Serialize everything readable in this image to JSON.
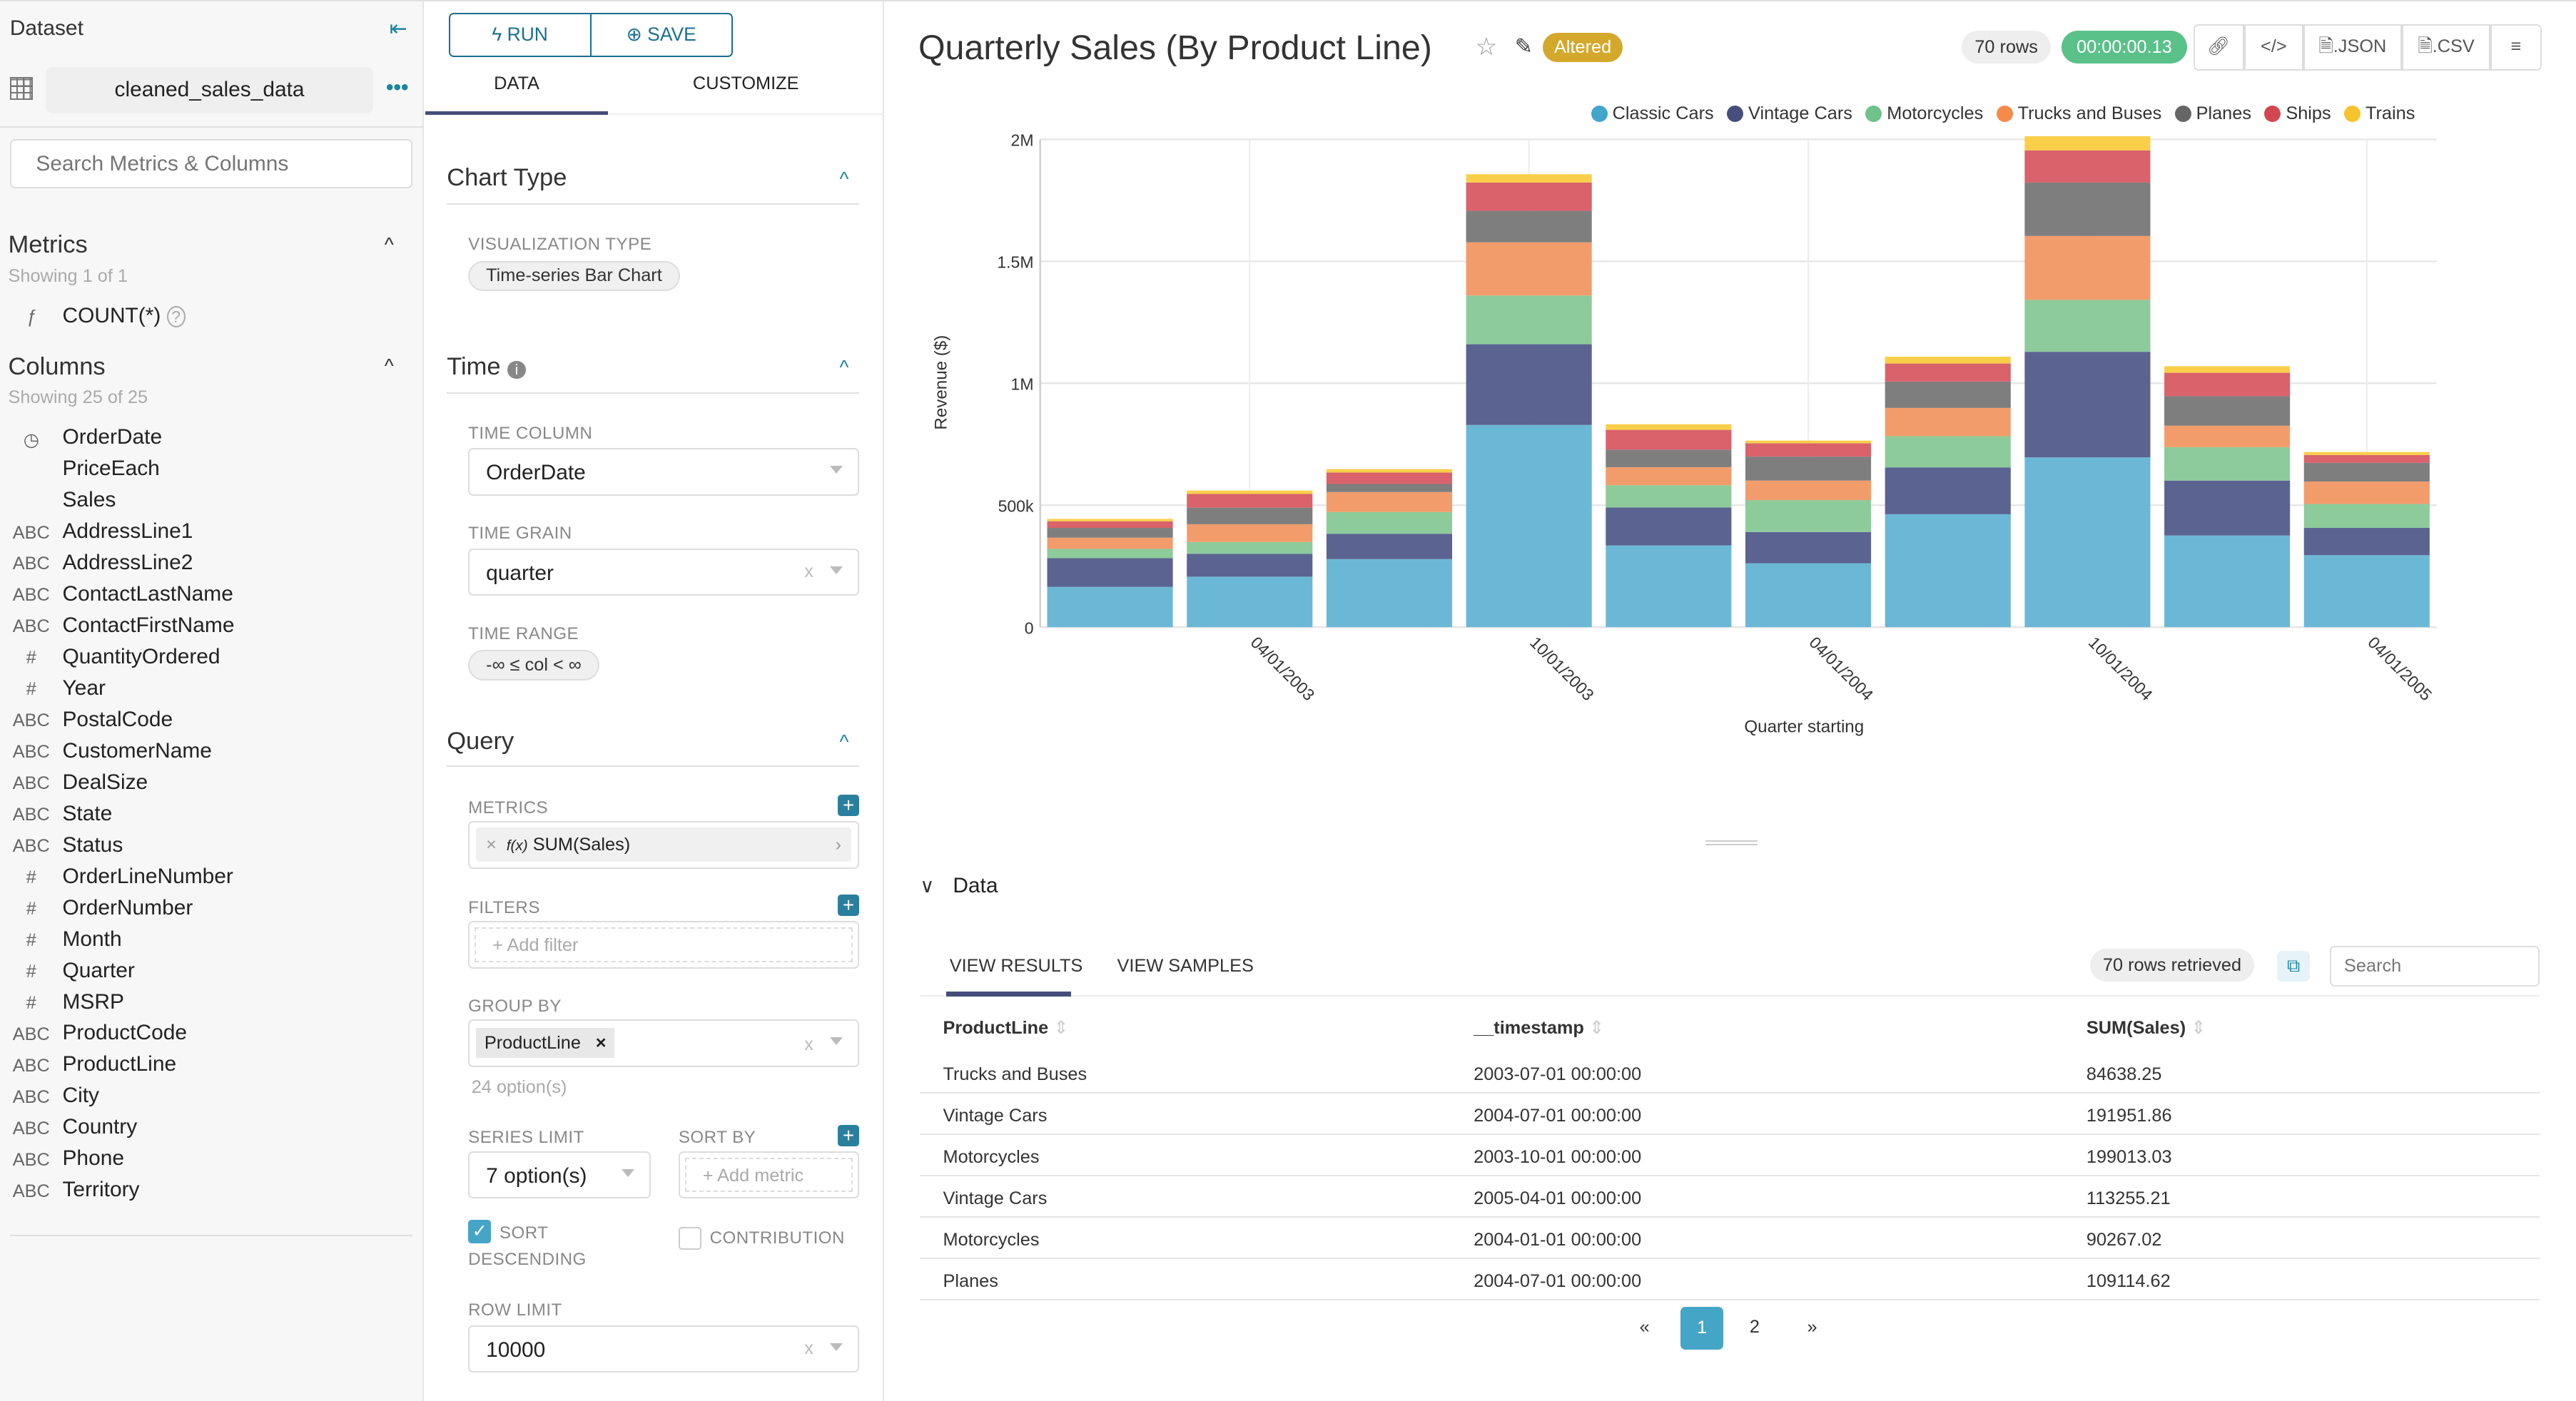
{
  "left": {
    "dataset_label": "Dataset",
    "dataset_name": "cleaned_sales_data",
    "search_placeholder": "Search Metrics & Columns",
    "metrics_title": "Metrics",
    "metrics_showing": "Showing 1 of 1",
    "metrics": [
      {
        "type": "ƒ",
        "name": "COUNT(*)"
      }
    ],
    "columns_title": "Columns",
    "columns_showing": "Showing 25 of 25",
    "columns": [
      {
        "type": "clock",
        "name": "OrderDate"
      },
      {
        "type": "",
        "name": "PriceEach"
      },
      {
        "type": "",
        "name": "Sales"
      },
      {
        "type": "ABC",
        "name": "AddressLine1"
      },
      {
        "type": "ABC",
        "name": "AddressLine2"
      },
      {
        "type": "ABC",
        "name": "ContactLastName"
      },
      {
        "type": "ABC",
        "name": "ContactFirstName"
      },
      {
        "type": "#",
        "name": "QuantityOrdered"
      },
      {
        "type": "#",
        "name": "Year"
      },
      {
        "type": "ABC",
        "name": "PostalCode"
      },
      {
        "type": "ABC",
        "name": "CustomerName"
      },
      {
        "type": "ABC",
        "name": "DealSize"
      },
      {
        "type": "ABC",
        "name": "State"
      },
      {
        "type": "ABC",
        "name": "Status"
      },
      {
        "type": "#",
        "name": "OrderLineNumber"
      },
      {
        "type": "#",
        "name": "OrderNumber"
      },
      {
        "type": "#",
        "name": "Month"
      },
      {
        "type": "#",
        "name": "Quarter"
      },
      {
        "type": "#",
        "name": "MSRP"
      },
      {
        "type": "ABC",
        "name": "ProductCode"
      },
      {
        "type": "ABC",
        "name": "ProductLine"
      },
      {
        "type": "ABC",
        "name": "City"
      },
      {
        "type": "ABC",
        "name": "Country"
      },
      {
        "type": "ABC",
        "name": "Phone"
      },
      {
        "type": "ABC",
        "name": "Territory"
      }
    ]
  },
  "mid": {
    "run_label": "RUN",
    "save_label": "SAVE",
    "tabs": [
      "DATA",
      "CUSTOMIZE"
    ],
    "active_tab": "DATA",
    "chart_type_title": "Chart Type",
    "viz_type_label": "VISUALIZATION TYPE",
    "viz_type_value": "Time-series Bar Chart",
    "time_title": "Time",
    "time_column_label": "TIME COLUMN",
    "time_column_value": "OrderDate",
    "time_grain_label": "TIME GRAIN",
    "time_grain_value": "quarter",
    "time_range_label": "TIME RANGE",
    "time_range_value": "-∞ ≤ col < ∞",
    "query_title": "Query",
    "metrics_label": "METRICS",
    "metric_value": "SUM(Sales)",
    "metric_fx": "f(x)",
    "filters_label": "FILTERS",
    "filters_placeholder": "Add filter",
    "group_by_label": "GROUP BY",
    "group_by_value": "ProductLine",
    "group_by_hint": "24 option(s)",
    "series_limit_label": "SERIES LIMIT",
    "series_limit_value": "7 option(s)",
    "sort_by_label": "SORT BY",
    "sort_by_placeholder": "Add metric",
    "sort_descending_label_1": "SORT",
    "sort_descending_label_2": "DESCENDING",
    "sort_descending_checked": true,
    "contribution_label": "CONTRIBUTION",
    "contribution_checked": false,
    "row_limit_label": "ROW LIMIT",
    "row_limit_value": "10000"
  },
  "header": {
    "title": "Quarterly Sales (By Product Line)",
    "altered_badge": "Altered",
    "rows_badge": "70 rows",
    "time_badge": "00:00:00.13",
    "json_label": ".JSON",
    "csv_label": ".CSV"
  },
  "colors": {
    "accent": "#1a85a0",
    "altered": "#d4a82a",
    "timer": "#5ac189",
    "active_page": "#45a5c7"
  },
  "chart_data": {
    "type": "bar",
    "stacked": true,
    "title": "",
    "xlabel": "Quarter starting",
    "ylabel": "Revenue ($)",
    "ylim": [
      0,
      2000000
    ],
    "yticks": [
      "0",
      "500k",
      "1M",
      "1.5M",
      "2M"
    ],
    "grid": true,
    "legend_position": "top-right",
    "categories": [
      "2003-01-01",
      "2003-04-01",
      "2003-07-01",
      "2003-10-01",
      "2004-01-01",
      "2004-04-01",
      "2004-07-01",
      "2004-10-01",
      "2005-01-01",
      "2005-04-01"
    ],
    "xtick_labels": [
      "",
      "04/01/2003",
      "",
      "10/01/2003",
      "",
      "04/01/2004",
      "",
      "10/01/2004",
      "",
      "04/01/2005"
    ],
    "series": [
      {
        "name": "Classic Cars",
        "color": "#6bb8d6",
        "values": [
          165000,
          207000,
          279000,
          829000,
          335000,
          262000,
          463000,
          696000,
          376000,
          295000
        ]
      },
      {
        "name": "Vintage Cars",
        "color": "#5b6391",
        "values": [
          118000,
          94000,
          104000,
          331000,
          156000,
          128000,
          192000,
          433000,
          225000,
          112000
        ]
      },
      {
        "name": "Motorcycles",
        "color": "#8dcb9b",
        "values": [
          38000,
          48000,
          89000,
          200000,
          91000,
          131000,
          128000,
          213000,
          137000,
          98000
        ]
      },
      {
        "name": "Trucks and Buses",
        "color": "#f39c6b",
        "values": [
          46000,
          73000,
          82000,
          218000,
          74000,
          80000,
          116000,
          262000,
          88000,
          92000
        ]
      },
      {
        "name": "Planes",
        "color": "#7e7e7e",
        "values": [
          40000,
          68000,
          33000,
          129000,
          72000,
          98000,
          108000,
          219000,
          121000,
          77000
        ]
      },
      {
        "name": "Ships",
        "color": "#d9626b",
        "values": [
          27000,
          56000,
          47000,
          116000,
          81000,
          55000,
          74000,
          132000,
          96000,
          32000
        ]
      },
      {
        "name": "Trains",
        "color": "#f9cf4a",
        "values": [
          10000,
          14000,
          14000,
          34000,
          23000,
          11000,
          28000,
          58000,
          27000,
          12000
        ]
      }
    ],
    "legend_colors": [
      "#42a5cc",
      "#454e7c",
      "#6ec28a",
      "#f68a4b",
      "#666666",
      "#d2474f",
      "#f7c32d"
    ]
  },
  "data_panel": {
    "title": "Data",
    "tabs": [
      "VIEW RESULTS",
      "VIEW SAMPLES"
    ],
    "rows_retrieved": "70 rows retrieved",
    "search_placeholder": "Search",
    "columns": [
      "ProductLine",
      "__timestamp",
      "SUM(Sales)"
    ],
    "rows": [
      [
        "Trucks and Buses",
        "2003-07-01 00:00:00",
        "84638.25"
      ],
      [
        "Vintage Cars",
        "2004-07-01 00:00:00",
        "191951.86"
      ],
      [
        "Motorcycles",
        "2003-10-01 00:00:00",
        "199013.03"
      ],
      [
        "Vintage Cars",
        "2005-04-01 00:00:00",
        "113255.21"
      ],
      [
        "Motorcycles",
        "2004-01-01 00:00:00",
        "90267.02"
      ],
      [
        "Planes",
        "2004-07-01 00:00:00",
        "109114.62"
      ]
    ],
    "pagination": {
      "prev": "«",
      "pages": [
        "1",
        "2"
      ],
      "current": "1",
      "next": "»"
    }
  }
}
